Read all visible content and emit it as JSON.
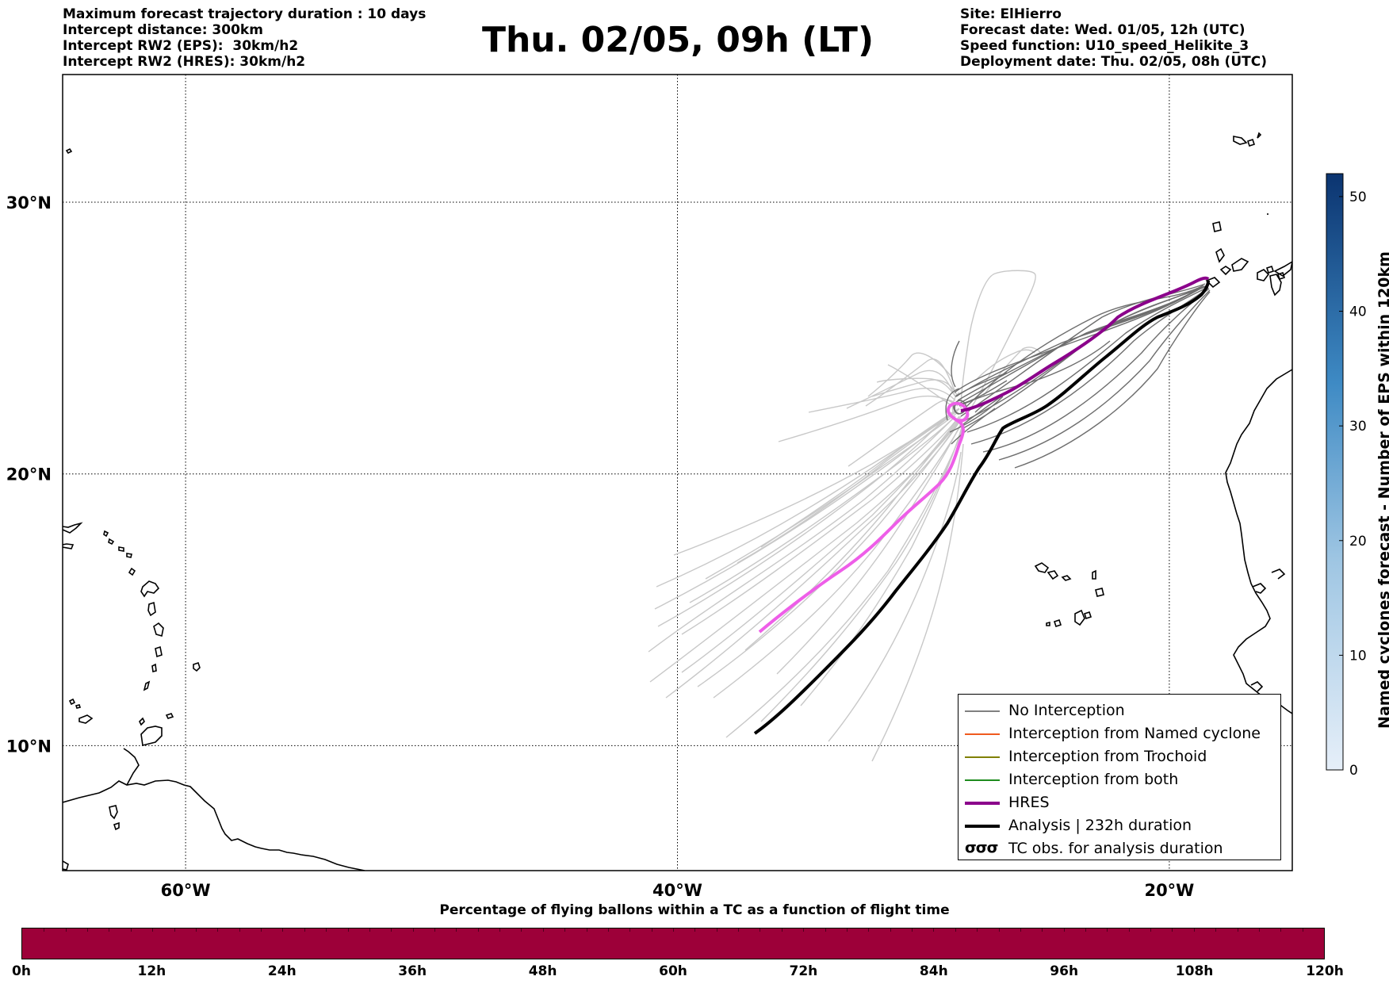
{
  "header": {
    "left_lines": [
      "Maximum forecast trajectory duration : 10 days",
      "Intercept distance: 300km",
      "Intercept RW2 (EPS):  30km/h2",
      "Intercept RW2 (HRES): 30km/h2"
    ],
    "title": "Thu. 02/05, 09h (LT)",
    "right_lines": [
      "Site: ElHierro",
      "Forecast date: Wed. 01/05, 12h (UTC)",
      "Speed function: U10_speed_Helikite_3",
      "Deployment date: Thu. 02/05, 08h (UTC)"
    ]
  },
  "map": {
    "lon_range": [
      -65,
      -15
    ],
    "lat_range": [
      5.4,
      34.7
    ],
    "lat_ticks": [
      {
        "value": 30,
        "label": "30°N"
      },
      {
        "value": 20,
        "label": "20°N"
      },
      {
        "value": 10,
        "label": "10°N"
      }
    ],
    "lon_ticks": [
      {
        "value": -60,
        "label": "60°W"
      },
      {
        "value": -40,
        "label": "40°W"
      },
      {
        "value": -20,
        "label": "20°W"
      }
    ],
    "launch_site": {
      "lon": -18.0,
      "lat": 27.7
    },
    "colors": {
      "no_interception_eps": "#6e6e6e",
      "faded_eps": "#c8c8c8",
      "hres": "#8b008b",
      "hres_light": "#ee5ee8",
      "analysis": "#000000"
    }
  },
  "colorbar": {
    "title": "Named cyclones forecast - Number of EPS within 120km",
    "min": 0,
    "max": 52,
    "ticks": [
      "0",
      "10",
      "20",
      "30",
      "40",
      "50"
    ],
    "color_low": "#e6eff9",
    "color_high": "#0b3470"
  },
  "bottom_bar": {
    "title": "Percentage of flying ballons within a TC as a function of flight time",
    "fill_color": "#9d0039",
    "ticks": [
      "0h",
      "12h",
      "24h",
      "36h",
      "48h",
      "60h",
      "72h",
      "84h",
      "96h",
      "108h",
      "120h"
    ]
  },
  "legend": {
    "items": [
      {
        "label": "No Interception",
        "color": "#808080",
        "style": "thin"
      },
      {
        "label": "Interception from Named cyclone",
        "color": "#f05a1e",
        "style": "thin"
      },
      {
        "label": "Interception from Trochoid",
        "color": "#808000",
        "style": "thin"
      },
      {
        "label": "Interception from both",
        "color": "#1e8c1e",
        "style": "thin"
      },
      {
        "label": "HRES",
        "color": "#8b008b",
        "style": "thick"
      },
      {
        "label": "Analysis | 232h duration",
        "color": "#000000",
        "style": "thick"
      },
      {
        "label": "TC obs. for analysis duration",
        "color": "#000000",
        "style": "symbol",
        "symbol": "σσσ"
      }
    ]
  }
}
